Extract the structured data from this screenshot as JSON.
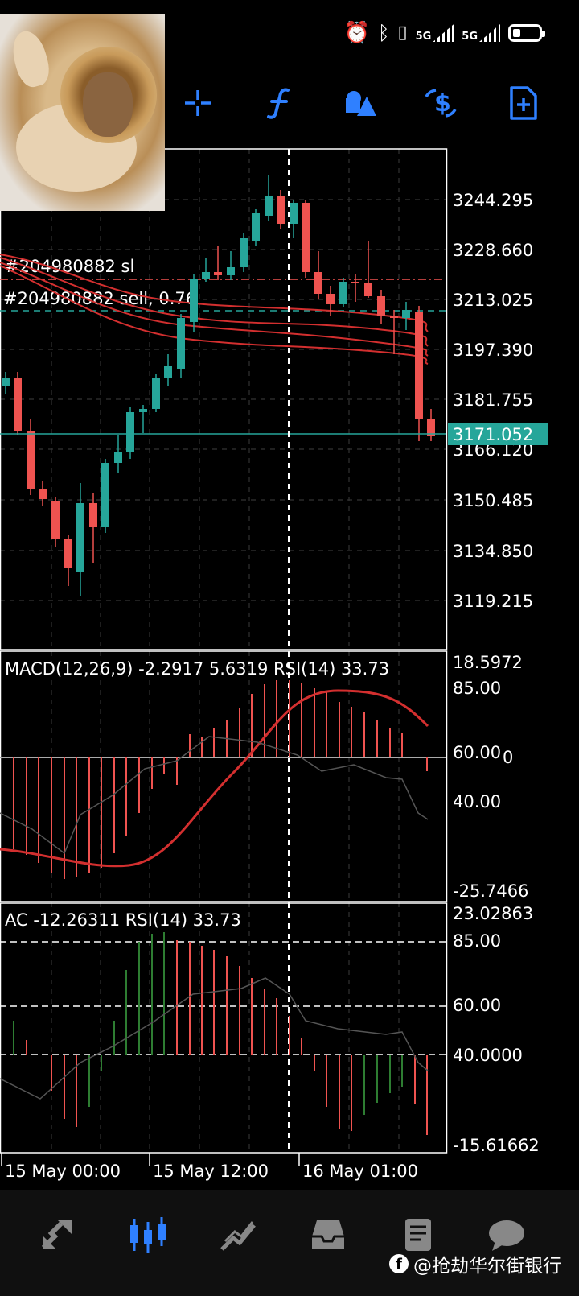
{
  "status_bar": {
    "net1": "5G",
    "net2": "5G",
    "icons": [
      "alarm-icon",
      "bluetooth-icon",
      "vibrate-icon",
      "signal-icon",
      "battery-icon"
    ]
  },
  "toolbar": {
    "items": [
      "crosshair-icon",
      "indicators-icon",
      "objects-icon",
      "trade-icon",
      "new-order-icon"
    ],
    "accent": "#2f80ff"
  },
  "main_chart": {
    "price_labels": [
      "3244.295",
      "3228.660",
      "3213.025",
      "3197.390",
      "3181.755",
      "3166.120",
      "3150.485",
      "3134.850",
      "3119.215"
    ],
    "current_price": "3171.052",
    "order_sl_label": "#204980882 sl",
    "order_label": "#204980882 sell, 0.76",
    "colors": {
      "bull": "#26a69a",
      "bear": "#ef5350",
      "ma": "#d32f2f",
      "current": "#26a69a",
      "sl_line": "#ef5350"
    }
  },
  "macd_panel": {
    "header": "MACD(12,26,9) -2.2917 5.6319 RSI(14) 33.73",
    "labels": [
      "18.5972",
      "85.00",
      "60.00",
      "0",
      "40.00",
      "-25.7466"
    ]
  },
  "ac_panel": {
    "header": "AC -12.26311 RSI(14) 33.73",
    "labels": [
      "23.02863",
      "85.00",
      "60.00",
      "40.0000",
      "-15.61662"
    ]
  },
  "x_axis": {
    "labels": [
      "15 May 00:00",
      "15 May 12:00",
      "16 May 01:00"
    ]
  },
  "bottom_nav": {
    "items": [
      "quotes-icon",
      "chart-icon",
      "trade-icon",
      "history-icon",
      "messages-icon"
    ],
    "active": "chart-icon"
  },
  "watermark": {
    "text": "@抢劫华尔街银行"
  }
}
